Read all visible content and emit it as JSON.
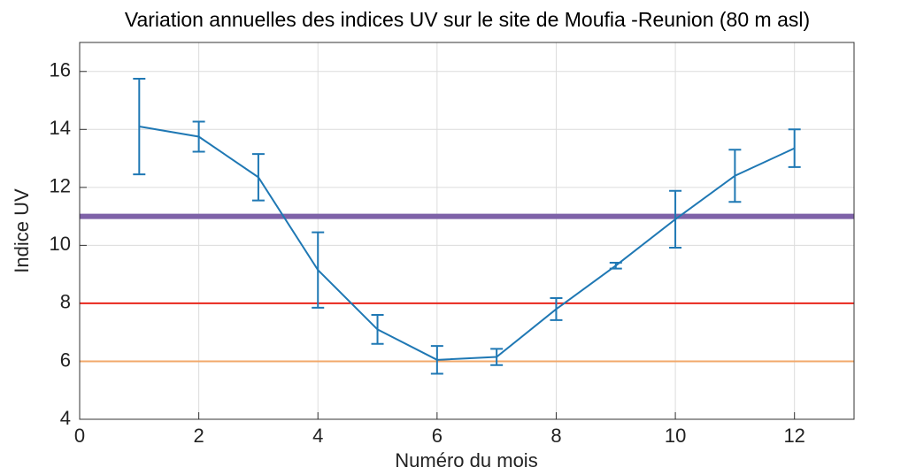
{
  "chart_data": {
    "type": "errorbar_line",
    "title": "Variation annuelles des indices UV sur le site de Moufia -Reunion (80 m asl)",
    "x_label": "Numéro du mois",
    "y_label": "Indice UV",
    "x": [
      1,
      2,
      3,
      4,
      5,
      6,
      7,
      8,
      9,
      10,
      11,
      12
    ],
    "series": [
      {
        "color": "#1f78b4",
        "values": [
          14.1,
          13.75,
          12.35,
          9.15,
          7.1,
          6.05,
          6.15,
          7.8,
          9.3,
          10.9,
          12.4,
          13.35
        ],
        "errors": [
          1.65,
          0.52,
          0.8,
          1.3,
          0.5,
          0.48,
          0.28,
          0.38,
          0.1,
          0.98,
          0.9,
          0.65
        ]
      }
    ],
    "reference_lines": [
      {
        "value": 11,
        "color": "#7e62a8"
      },
      {
        "value": 8,
        "color": "#e8261c"
      },
      {
        "value": 6,
        "color": "#f2a86a"
      }
    ],
    "xlim": [
      0,
      13
    ],
    "xticks": [
      0,
      2,
      4,
      6,
      8,
      10,
      12
    ],
    "ylim": [
      4,
      17
    ],
    "yticks": [
      4,
      6,
      8,
      10,
      12,
      14,
      16
    ],
    "grid": true
  }
}
